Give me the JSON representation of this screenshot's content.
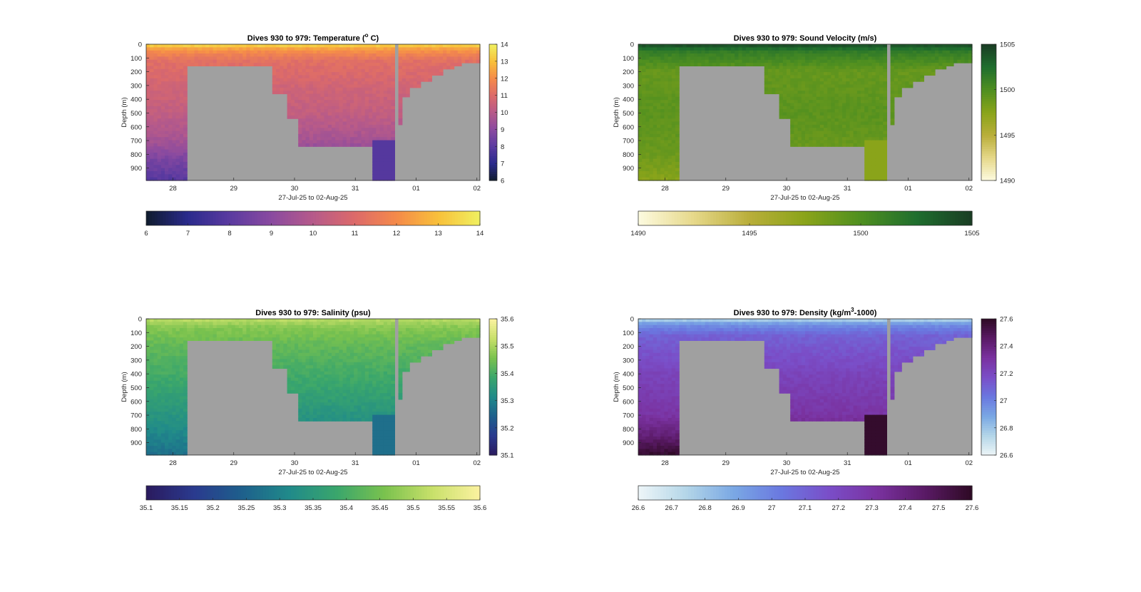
{
  "chart_data": [
    {
      "type": "heatmap",
      "id": "temp",
      "title": "Dives 930 to 979: Temperature (",
      "title_sup": "o",
      "title_end": " C)",
      "xlabel": "27-Jul-25 to 02-Aug-25",
      "ylabel": "Depth (m)",
      "xticks": [
        "28",
        "29",
        "30",
        "31",
        "01",
        "02"
      ],
      "yticks": [
        "0",
        "100",
        "200",
        "300",
        "400",
        "500",
        "600",
        "700",
        "800",
        "900"
      ],
      "ylim": [
        0,
        990
      ],
      "colorbar": {
        "range": [
          6,
          14
        ],
        "ticks": [
          "6",
          "7",
          "8",
          "9",
          "10",
          "11",
          "12",
          "13",
          "14"
        ],
        "hticks": [
          "6",
          "7",
          "8",
          "9",
          "10",
          "11",
          "12",
          "13",
          "14"
        ],
        "colors": [
          "#0f1b2d",
          "#2a2a8c",
          "#5a3aa0",
          "#8a4aa0",
          "#b65a8a",
          "#dc6a6a",
          "#f58a4a",
          "#f8c03a",
          "#f0f060"
        ]
      },
      "profile": [
        {
          "depth": 0,
          "value": 13.6
        },
        {
          "depth": 40,
          "value": 12.2
        },
        {
          "depth": 120,
          "value": 11.2
        },
        {
          "depth": 300,
          "value": 10.7
        },
        {
          "depth": 500,
          "value": 10.3
        },
        {
          "depth": 700,
          "value": 9.6
        },
        {
          "depth": 850,
          "value": 8.6
        },
        {
          "depth": 990,
          "value": 7.9
        }
      ]
    },
    {
      "type": "heatmap",
      "id": "sv",
      "title": "Dives 930 to 979: Sound Velocity (m/s)",
      "xlabel": "27-Jul-25 to 02-Aug-25",
      "ylabel": "Depth (m)",
      "xticks": [
        "28",
        "29",
        "30",
        "31",
        "01",
        "02"
      ],
      "yticks": [
        "0",
        "100",
        "200",
        "300",
        "400",
        "500",
        "600",
        "700",
        "800",
        "900"
      ],
      "ylim": [
        0,
        990
      ],
      "colorbar": {
        "range": [
          1490,
          1505
        ],
        "ticks": [
          "1490",
          "1495",
          "1500",
          "1505"
        ],
        "hticks": [
          "1490",
          "1495",
          "1500",
          "1505"
        ],
        "colors": [
          "#fdfbe0",
          "#e6d88a",
          "#b9ae3a",
          "#8aa41a",
          "#4f8f20",
          "#1f6e2e",
          "#1a3d24"
        ]
      },
      "profile": [
        {
          "depth": 0,
          "value": 1504.5
        },
        {
          "depth": 50,
          "value": 1501.5
        },
        {
          "depth": 200,
          "value": 1499.0
        },
        {
          "depth": 500,
          "value": 1499.5
        },
        {
          "depth": 800,
          "value": 1498.8
        },
        {
          "depth": 990,
          "value": 1497.5
        }
      ]
    },
    {
      "type": "heatmap",
      "id": "sal",
      "title": "Dives 930 to 979: Salinity (psu)",
      "xlabel": "27-Jul-25 to 02-Aug-25",
      "ylabel": "Depth (m)",
      "xticks": [
        "28",
        "29",
        "30",
        "31",
        "01",
        "02"
      ],
      "yticks": [
        "0",
        "100",
        "200",
        "300",
        "400",
        "500",
        "600",
        "700",
        "800",
        "900"
      ],
      "ylim": [
        0,
        990
      ],
      "colorbar": {
        "range": [
          35.1,
          35.6
        ],
        "ticks": [
          "35.1",
          "35.2",
          "35.3",
          "35.4",
          "35.5",
          "35.6"
        ],
        "hticks": [
          "35.1",
          "35.15",
          "35.2",
          "35.25",
          "35.3",
          "35.35",
          "35.4",
          "35.45",
          "35.5",
          "35.55",
          "35.6"
        ],
        "colors": [
          "#2a1a5e",
          "#2a3a8e",
          "#1e5f8c",
          "#208a8a",
          "#3aa66c",
          "#7ac24e",
          "#c8e06a",
          "#fbf2a0"
        ]
      },
      "profile": [
        {
          "depth": 0,
          "value": 35.52
        },
        {
          "depth": 60,
          "value": 35.47
        },
        {
          "depth": 200,
          "value": 35.43
        },
        {
          "depth": 500,
          "value": 35.38
        },
        {
          "depth": 750,
          "value": 35.33
        },
        {
          "depth": 990,
          "value": 35.27
        }
      ]
    },
    {
      "type": "heatmap",
      "id": "den",
      "title": "Dives 930 to 979: Density (kg/m",
      "title_sup": "3",
      "title_end": "-1000)",
      "xlabel": "27-Jul-25 to 02-Aug-25",
      "ylabel": "Depth (m)",
      "xticks": [
        "28",
        "29",
        "30",
        "31",
        "01",
        "02"
      ],
      "yticks": [
        "0",
        "100",
        "200",
        "300",
        "400",
        "500",
        "600",
        "700",
        "800",
        "900"
      ],
      "ylim": [
        0,
        990
      ],
      "colorbar": {
        "range": [
          26.6,
          27.6
        ],
        "ticks": [
          "26.6",
          "26.8",
          "27",
          "27.2",
          "27.4",
          "27.6"
        ],
        "hticks": [
          "26.6",
          "26.7",
          "26.8",
          "26.9",
          "27",
          "27.1",
          "27.2",
          "27.3",
          "27.4",
          "27.5",
          "27.6"
        ],
        "colors": [
          "#eef6f8",
          "#b4d6e8",
          "#7aa8e4",
          "#6a78e0",
          "#7a4ec8",
          "#7a32a0",
          "#5a1a66",
          "#2e0a24"
        ]
      },
      "profile": [
        {
          "depth": 0,
          "value": 26.72
        },
        {
          "depth": 40,
          "value": 26.95
        },
        {
          "depth": 120,
          "value": 27.1
        },
        {
          "depth": 400,
          "value": 27.22
        },
        {
          "depth": 700,
          "value": 27.3
        },
        {
          "depth": 850,
          "value": 27.42
        },
        {
          "depth": 990,
          "value": 27.58
        }
      ]
    }
  ]
}
